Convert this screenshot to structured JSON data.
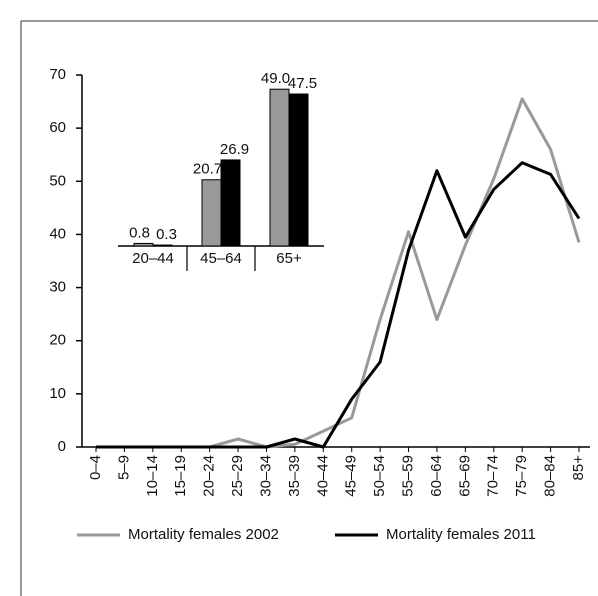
{
  "chart_data": [
    {
      "type": "line",
      "categories": [
        "0–4",
        "5–9",
        "10–14",
        "15–19",
        "20–24",
        "25–29",
        "30–34",
        "35–39",
        "40–44",
        "45–49",
        "50–54",
        "55–59",
        "60–64",
        "65–69",
        "70–74",
        "75–79",
        "80–84",
        "85+"
      ],
      "series": [
        {
          "name": "Mortality females 2002",
          "color": "#999999",
          "values": [
            0,
            0,
            0,
            0,
            0,
            1.5,
            0,
            0.5,
            3,
            5.5,
            24,
            40.5,
            24,
            38,
            50.5,
            65.5,
            56,
            38.5
          ]
        },
        {
          "name": "Mortality females 2011",
          "color": "#000000",
          "values": [
            0,
            0,
            0,
            0,
            0,
            0,
            0,
            1.5,
            0,
            9,
            16,
            37,
            52,
            39.5,
            48.5,
            53.5,
            51.3,
            43
          ]
        }
      ],
      "ylim": [
        0,
        70
      ],
      "yticks": [
        0,
        10,
        20,
        30,
        40,
        50,
        60,
        70
      ],
      "legend": "bottom"
    },
    {
      "type": "bar",
      "categories": [
        "20–44",
        "45–64",
        "65+"
      ],
      "series": [
        {
          "color": "#999999",
          "values": [
            0.8,
            20.7,
            49.0
          ],
          "value_labels": [
            "0.8",
            "20.7",
            "49.0"
          ]
        },
        {
          "color": "#000000",
          "values": [
            0.3,
            26.9,
            47.5
          ]
        }
      ]
    }
  ]
}
